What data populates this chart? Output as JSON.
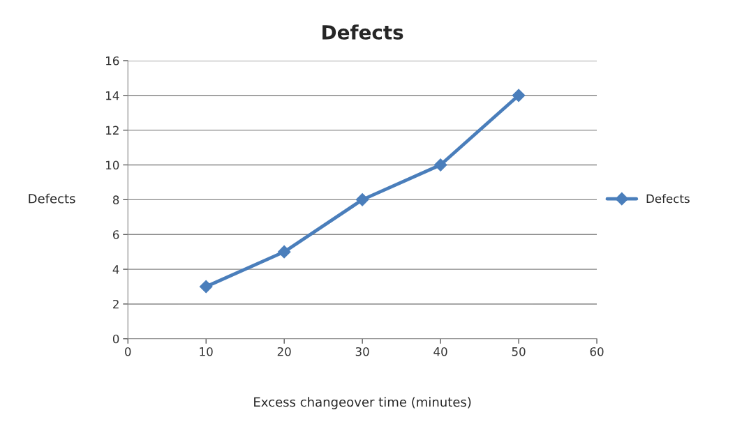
{
  "chart_data": {
    "type": "line",
    "title": "Defects",
    "xlabel": "Excess changeover time (minutes)",
    "ylabel": "Defects",
    "x": [
      10,
      20,
      30,
      40,
      50
    ],
    "series": [
      {
        "name": "Defects",
        "color": "#4a7ebb",
        "values": [
          3,
          5,
          8,
          10,
          14
        ]
      }
    ],
    "xlim": [
      0,
      60
    ],
    "xticks": [
      0,
      10,
      20,
      30,
      40,
      50,
      60
    ],
    "ylim": [
      0,
      16
    ],
    "yticks": [
      0,
      2,
      4,
      6,
      8,
      10,
      12,
      14,
      16
    ],
    "grid": "y",
    "legend": "right",
    "marker": "diamond",
    "line_style": "solid"
  }
}
